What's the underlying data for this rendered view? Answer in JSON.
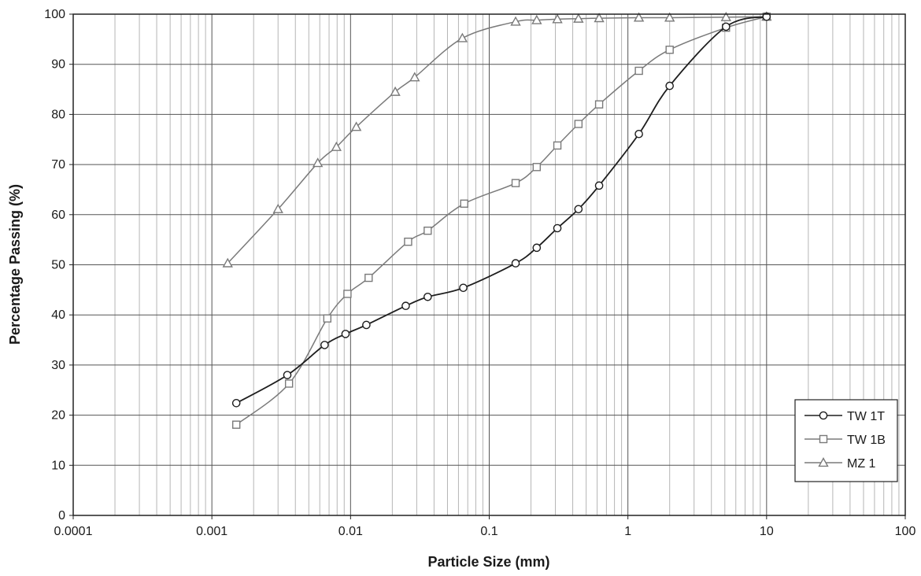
{
  "chart_data": {
    "type": "line",
    "title": "",
    "xlabel": "Particle Size (mm)",
    "ylabel": "Percentage Passing (%)",
    "xscale": "log",
    "xlim": [
      0.0001,
      100
    ],
    "ylim": [
      0,
      100
    ],
    "grid": true,
    "legend_position": "bottom-right",
    "x_tick_labels": [
      "0.0001",
      "0.001",
      "0.01",
      "0.1",
      "1",
      "10",
      "100"
    ],
    "y_tick_labels": [
      "0",
      "10",
      "20",
      "30",
      "40",
      "50",
      "60",
      "70",
      "80",
      "90",
      "100"
    ],
    "series": [
      {
        "name": "TW 1T",
        "marker": "circle",
        "color": "#1e1e1e",
        "x": [
          0.0015,
          0.0035,
          0.0065,
          0.0092,
          0.013,
          0.025,
          0.036,
          0.065,
          0.155,
          0.22,
          0.31,
          0.44,
          0.62,
          1.2,
          2.0,
          5.1,
          10.0
        ],
        "y": [
          22.4,
          28.0,
          34.0,
          36.2,
          38.0,
          41.8,
          43.6,
          45.4,
          50.3,
          53.4,
          57.3,
          61.1,
          65.8,
          76.1,
          85.7,
          97.5,
          99.5
        ]
      },
      {
        "name": "TW 1B",
        "marker": "square",
        "color": "#7a7a7a",
        "x": [
          0.0015,
          0.0036,
          0.0068,
          0.0095,
          0.0135,
          0.026,
          0.036,
          0.066,
          0.155,
          0.22,
          0.31,
          0.44,
          0.62,
          1.2,
          2.0,
          5.1,
          10.0
        ],
        "y": [
          18.1,
          26.3,
          39.3,
          44.2,
          47.4,
          54.6,
          56.8,
          62.2,
          66.3,
          69.5,
          73.8,
          78.1,
          82.0,
          88.7,
          92.9,
          97.3,
          99.5
        ]
      },
      {
        "name": "MZ 1",
        "marker": "triangle",
        "color": "#7a7a7a",
        "x": [
          0.0013,
          0.003,
          0.0058,
          0.0079,
          0.011,
          0.021,
          0.029,
          0.064,
          0.155,
          0.22,
          0.31,
          0.44,
          0.62,
          1.2,
          2.0,
          5.1,
          10.0
        ],
        "y": [
          50.3,
          61.1,
          70.3,
          73.5,
          77.5,
          84.5,
          87.4,
          95.2,
          98.5,
          98.8,
          99.0,
          99.1,
          99.2,
          99.3,
          99.3,
          99.4,
          99.5
        ]
      }
    ]
  }
}
